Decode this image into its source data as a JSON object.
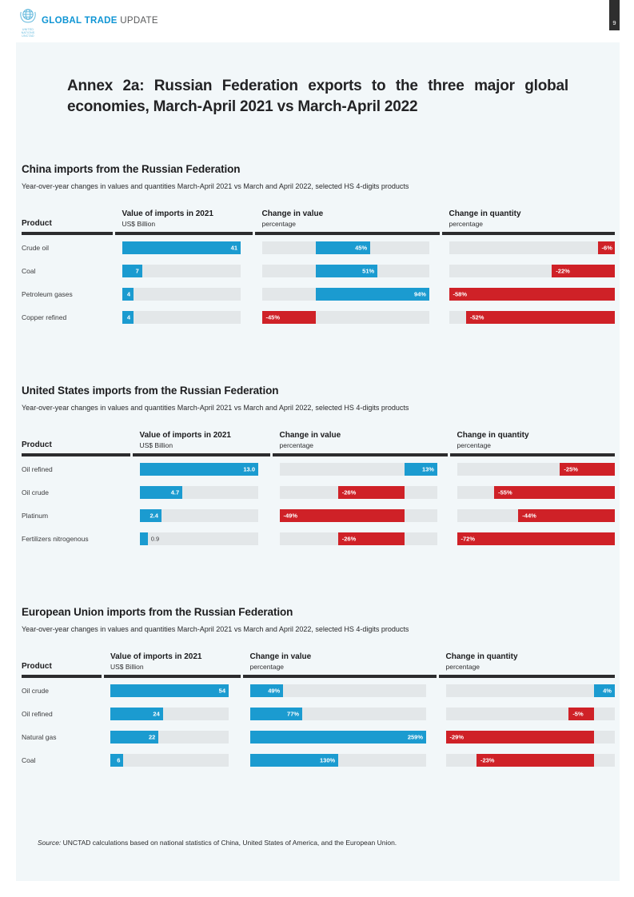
{
  "page": {
    "number": "9"
  },
  "topbar": {
    "brand_bold": "GLOBAL TRADE",
    "brand_regular": "UPDATE",
    "logo_caption_line1": "UNITED NATIONS",
    "logo_caption_line2": "UNCTAD"
  },
  "title": "Annex 2a: Russian Federation exports to the three major global economies, March-April 2021 vs March-April 2022",
  "section_subtitle": "Year-over-year changes in values and quantities March-April 2021 vs March and April 2022, selected HS 4-digits products",
  "table_headers": {
    "product": "Product",
    "value_line1": "Value of imports in 2021",
    "value_line2": "US$ Billion",
    "change_value_line1": "Change in value",
    "change_value_line2": "percentage",
    "change_quantity_line1": "Change in quantity",
    "change_quantity_line2": "percentage"
  },
  "source": {
    "label": "Source:",
    "text": " UNCTAD calculations based on national statistics of China, United States of America, and the European Union."
  },
  "colors": {
    "bar_blue": "#1b9bd0",
    "bar_red": "#cf2127",
    "bar_track": "#e3e7e9",
    "card_bg": "#f2f7f9",
    "brand_blue": "#0f95d4",
    "header_rule": "#2c2c2e"
  },
  "chart_data": [
    {
      "type": "bar",
      "title": "China imports from the Russian Federation",
      "products": [
        "Crude oil",
        "Coal",
        "Petroleum gases",
        "Copper refined"
      ],
      "series": [
        {
          "name": "Value of imports in 2021 (US$ Billion)",
          "values": [
            41,
            7,
            4,
            4
          ],
          "labels": [
            "41",
            "7",
            "4",
            "4"
          ]
        },
        {
          "name": "Change in value (percentage)",
          "values": [
            45,
            51,
            94,
            -45
          ],
          "labels": [
            "45%",
            "51%",
            "94%",
            "-45%"
          ]
        },
        {
          "name": "Change in quantity (percentage)",
          "values": [
            -6,
            -22,
            -58,
            -52
          ],
          "labels": [
            "-6%",
            "-22%",
            "-58%",
            "-52%"
          ]
        }
      ],
      "layout": {
        "grid_columns": [
          114,
          172,
          231,
          216
        ]
      }
    },
    {
      "type": "bar",
      "title": "United States imports from the Russian Federation",
      "products": [
        "Oil refined",
        "Oil crude",
        "Platinum",
        "Fertilizers nitrogenous"
      ],
      "series": [
        {
          "name": "Value of imports in 2021 (US$ Billion)",
          "values": [
            13.0,
            4.7,
            2.4,
            0.9
          ],
          "labels": [
            "13.0",
            "4.7",
            "2.4",
            "0.9"
          ]
        },
        {
          "name": "Change in value (percentage)",
          "values": [
            13,
            -26,
            -49,
            -26
          ],
          "labels": [
            "13%",
            "-26%",
            "-49%",
            "-26%"
          ]
        },
        {
          "name": "Change in quantity (percentage)",
          "values": [
            -25,
            -55,
            -44,
            -72
          ],
          "labels": [
            "-25%",
            "-55%",
            "-44%",
            "-72%"
          ]
        }
      ],
      "layout": {
        "grid_columns": [
          136,
          172,
          219,
          206
        ]
      }
    },
    {
      "type": "bar",
      "title": "European Union imports from the Russian Federation",
      "products": [
        "Oil crude",
        "Oil refined",
        "Natural gas",
        "Coal"
      ],
      "series": [
        {
          "name": "Value of imports in 2021 (US$ Billion)",
          "values": [
            54,
            24,
            22,
            6
          ],
          "labels": [
            "54",
            "24",
            "22",
            "6"
          ]
        },
        {
          "name": "Change in value (percentage)",
          "values": [
            49,
            77,
            259,
            130
          ],
          "labels": [
            "49%",
            "77%",
            "259%",
            "130%"
          ]
        },
        {
          "name": "Change in quantity (percentage)",
          "values": [
            4,
            -5,
            -29,
            -23
          ],
          "labels": [
            "4%",
            "-5%",
            "-29%",
            "-23%"
          ]
        }
      ],
      "layout": {
        "grid_columns": [
          99.5,
          171.5,
          242,
          220
        ]
      }
    }
  ]
}
